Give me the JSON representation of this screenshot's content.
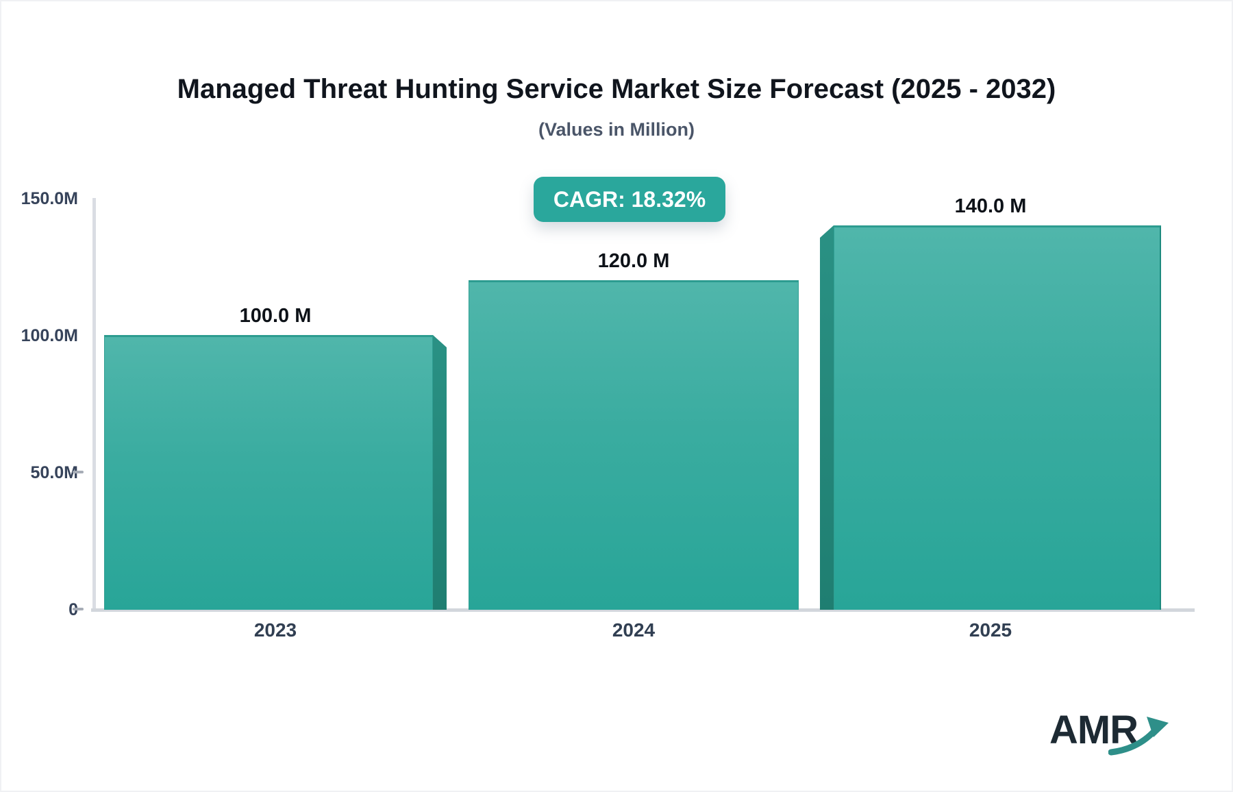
{
  "header": {
    "title": "Managed Threat Hunting Service Market Size Forecast (2025 - 2032)",
    "subtitle": "(Values in Million)"
  },
  "badge": {
    "text": "CAGR: 18.32%",
    "bg_color": "#2aa79c",
    "text_color": "#ffffff"
  },
  "chart_data": {
    "type": "bar",
    "title": "Managed Threat Hunting Service Market Size Forecast (2025 - 2032)",
    "subtitle": "(Values in Million)",
    "cagr_percent": 18.32,
    "categories": [
      "2023",
      "2024",
      "2025"
    ],
    "values": [
      100.0,
      120.0,
      140.0
    ],
    "value_labels": [
      "100.0 M",
      "120.0 M",
      "140.0 M"
    ],
    "unit": "Million",
    "ylim": [
      0,
      150
    ],
    "ytick_values": [
      0,
      50,
      100,
      150
    ],
    "ytick_labels": [
      "0",
      "50.0M",
      "100.0M",
      "150.0M"
    ],
    "xlabel": "",
    "ylabel": "",
    "grid": false,
    "legend": "none",
    "bar_color_top": "#50b6ab",
    "bar_color_bottom": "#28a598",
    "bar_side_color": "#1f7e71"
  },
  "logo": {
    "text": "AMR",
    "text_color": "#1d2a33",
    "arrow_color": "#2e8f89"
  }
}
